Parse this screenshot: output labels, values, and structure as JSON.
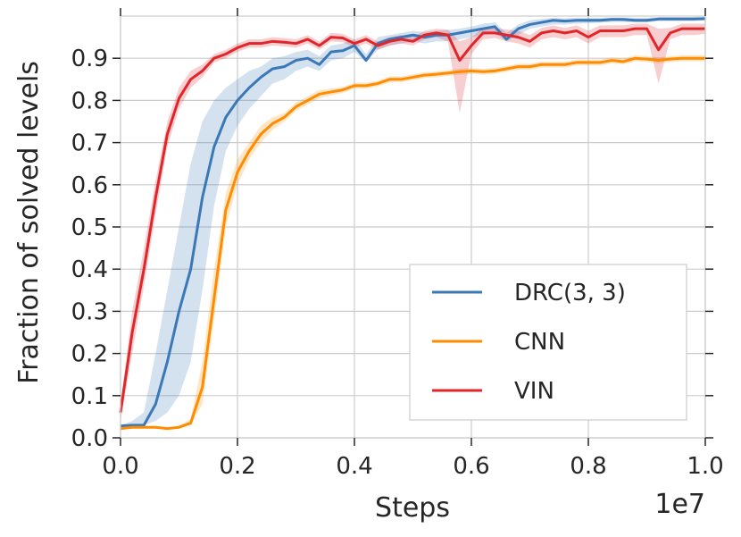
{
  "chart_data": {
    "type": "line",
    "xlabel": "Steps",
    "ylabel": "Fraction of solved levels",
    "x_offset_label": "1e7",
    "xlim": [
      0.0,
      1.0
    ],
    "ylim": [
      0.0,
      1.0
    ],
    "xticks": [
      "0.0",
      "0.2",
      "0.4",
      "0.6",
      "0.8",
      "1.0"
    ],
    "yticks": [
      "0.0",
      "0.1",
      "0.2",
      "0.3",
      "0.4",
      "0.5",
      "0.6",
      "0.7",
      "0.8",
      "0.9"
    ],
    "grid": true,
    "legend": "bottom-right",
    "series": [
      {
        "name": "DRC(3, 3)",
        "color": "#3a78b8",
        "x": [
          0.0,
          0.02,
          0.04,
          0.06,
          0.08,
          0.1,
          0.12,
          0.14,
          0.16,
          0.18,
          0.2,
          0.22,
          0.24,
          0.26,
          0.28,
          0.3,
          0.32,
          0.34,
          0.36,
          0.38,
          0.4,
          0.42,
          0.44,
          0.46,
          0.48,
          0.5,
          0.52,
          0.54,
          0.56,
          0.58,
          0.6,
          0.62,
          0.64,
          0.66,
          0.68,
          0.7,
          0.72,
          0.74,
          0.76,
          0.78,
          0.8,
          0.82,
          0.84,
          0.86,
          0.88,
          0.9,
          0.92,
          0.94,
          0.96,
          0.98,
          1.0
        ],
        "y": [
          0.028,
          0.03,
          0.03,
          0.08,
          0.18,
          0.3,
          0.4,
          0.57,
          0.69,
          0.76,
          0.8,
          0.83,
          0.855,
          0.875,
          0.88,
          0.895,
          0.9,
          0.885,
          0.915,
          0.918,
          0.93,
          0.895,
          0.935,
          0.945,
          0.95,
          0.955,
          0.95,
          0.955,
          0.955,
          0.96,
          0.965,
          0.97,
          0.975,
          0.945,
          0.97,
          0.98,
          0.985,
          0.99,
          0.988,
          0.99,
          0.99,
          0.99,
          0.992,
          0.992,
          0.99,
          0.99,
          0.993,
          0.993,
          0.993,
          0.993,
          0.994
        ],
        "lower": [
          0.028,
          0.03,
          0.03,
          0.04,
          0.06,
          0.1,
          0.18,
          0.35,
          0.55,
          0.68,
          0.74,
          0.78,
          0.81,
          0.84,
          0.85,
          0.87,
          0.88,
          0.87,
          0.895,
          0.9,
          0.915,
          0.89,
          0.92,
          0.93,
          0.935,
          0.94,
          0.935,
          0.94,
          0.94,
          0.945,
          0.95,
          0.955,
          0.96,
          0.94,
          0.955,
          0.97,
          0.975,
          0.98,
          0.98,
          0.982,
          0.983,
          0.984,
          0.986,
          0.986,
          0.985,
          0.985,
          0.988,
          0.988,
          0.988,
          0.988,
          0.99
        ],
        "upper": [
          0.03,
          0.04,
          0.06,
          0.2,
          0.35,
          0.5,
          0.65,
          0.75,
          0.8,
          0.83,
          0.85,
          0.87,
          0.88,
          0.9,
          0.905,
          0.915,
          0.92,
          0.905,
          0.93,
          0.935,
          0.945,
          0.91,
          0.95,
          0.955,
          0.96,
          0.965,
          0.962,
          0.965,
          0.967,
          0.97,
          0.975,
          0.982,
          0.985,
          0.96,
          0.98,
          0.99,
          0.993,
          0.996,
          0.995,
          0.996,
          0.996,
          0.996,
          0.997,
          0.997,
          0.996,
          0.996,
          0.998,
          0.998,
          0.998,
          0.998,
          0.999
        ]
      },
      {
        "name": "CNN",
        "color": "#ff8c00",
        "x": [
          0.0,
          0.02,
          0.04,
          0.06,
          0.08,
          0.1,
          0.12,
          0.14,
          0.16,
          0.18,
          0.2,
          0.22,
          0.24,
          0.26,
          0.28,
          0.3,
          0.32,
          0.34,
          0.36,
          0.38,
          0.4,
          0.42,
          0.44,
          0.46,
          0.48,
          0.5,
          0.52,
          0.54,
          0.56,
          0.58,
          0.6,
          0.62,
          0.64,
          0.66,
          0.68,
          0.7,
          0.72,
          0.74,
          0.76,
          0.78,
          0.8,
          0.82,
          0.84,
          0.86,
          0.88,
          0.9,
          0.92,
          0.94,
          0.96,
          0.98,
          1.0
        ],
        "y": [
          0.022,
          0.025,
          0.025,
          0.025,
          0.022,
          0.025,
          0.035,
          0.12,
          0.33,
          0.54,
          0.63,
          0.68,
          0.72,
          0.745,
          0.76,
          0.785,
          0.8,
          0.815,
          0.82,
          0.825,
          0.835,
          0.835,
          0.84,
          0.85,
          0.85,
          0.855,
          0.86,
          0.862,
          0.865,
          0.868,
          0.87,
          0.868,
          0.87,
          0.875,
          0.88,
          0.88,
          0.885,
          0.885,
          0.885,
          0.89,
          0.89,
          0.89,
          0.895,
          0.892,
          0.9,
          0.898,
          0.895,
          0.898,
          0.9,
          0.9,
          0.9
        ],
        "lower": [
          0.02,
          0.022,
          0.022,
          0.022,
          0.02,
          0.022,
          0.03,
          0.08,
          0.28,
          0.5,
          0.6,
          0.66,
          0.7,
          0.73,
          0.75,
          0.775,
          0.79,
          0.805,
          0.812,
          0.818,
          0.828,
          0.828,
          0.833,
          0.843,
          0.843,
          0.848,
          0.853,
          0.855,
          0.858,
          0.861,
          0.863,
          0.861,
          0.863,
          0.868,
          0.873,
          0.873,
          0.878,
          0.878,
          0.878,
          0.883,
          0.883,
          0.883,
          0.888,
          0.885,
          0.893,
          0.891,
          0.888,
          0.891,
          0.893,
          0.893,
          0.893
        ],
        "upper": [
          0.025,
          0.028,
          0.028,
          0.028,
          0.025,
          0.028,
          0.045,
          0.18,
          0.4,
          0.58,
          0.66,
          0.7,
          0.74,
          0.76,
          0.77,
          0.795,
          0.81,
          0.825,
          0.828,
          0.832,
          0.842,
          0.842,
          0.847,
          0.857,
          0.857,
          0.862,
          0.867,
          0.869,
          0.872,
          0.875,
          0.877,
          0.875,
          0.877,
          0.882,
          0.887,
          0.887,
          0.892,
          0.892,
          0.892,
          0.897,
          0.897,
          0.897,
          0.902,
          0.899,
          0.907,
          0.905,
          0.902,
          0.905,
          0.907,
          0.907,
          0.907
        ]
      },
      {
        "name": "VIN",
        "color": "#e0262a",
        "x": [
          0.0,
          0.02,
          0.04,
          0.06,
          0.08,
          0.1,
          0.12,
          0.14,
          0.16,
          0.18,
          0.2,
          0.22,
          0.24,
          0.26,
          0.28,
          0.3,
          0.32,
          0.34,
          0.36,
          0.38,
          0.4,
          0.42,
          0.44,
          0.46,
          0.48,
          0.5,
          0.52,
          0.54,
          0.56,
          0.58,
          0.6,
          0.62,
          0.64,
          0.66,
          0.68,
          0.7,
          0.72,
          0.74,
          0.76,
          0.78,
          0.8,
          0.82,
          0.84,
          0.86,
          0.88,
          0.9,
          0.92,
          0.94,
          0.96,
          0.98,
          1.0
        ],
        "y": [
          0.06,
          0.25,
          0.4,
          0.57,
          0.72,
          0.805,
          0.85,
          0.87,
          0.9,
          0.91,
          0.925,
          0.935,
          0.935,
          0.94,
          0.938,
          0.935,
          0.945,
          0.93,
          0.95,
          0.948,
          0.935,
          0.945,
          0.93,
          0.94,
          0.945,
          0.94,
          0.955,
          0.96,
          0.955,
          0.895,
          0.93,
          0.96,
          0.96,
          0.955,
          0.95,
          0.94,
          0.96,
          0.965,
          0.96,
          0.965,
          0.95,
          0.965,
          0.965,
          0.965,
          0.97,
          0.97,
          0.92,
          0.96,
          0.97,
          0.97,
          0.97
        ],
        "lower": [
          0.04,
          0.2,
          0.36,
          0.53,
          0.69,
          0.78,
          0.83,
          0.855,
          0.89,
          0.9,
          0.915,
          0.925,
          0.925,
          0.93,
          0.928,
          0.925,
          0.935,
          0.92,
          0.94,
          0.938,
          0.925,
          0.935,
          0.92,
          0.93,
          0.935,
          0.93,
          0.945,
          0.95,
          0.94,
          0.77,
          0.91,
          0.945,
          0.948,
          0.94,
          0.935,
          0.925,
          0.945,
          0.95,
          0.945,
          0.95,
          0.935,
          0.95,
          0.95,
          0.95,
          0.955,
          0.955,
          0.84,
          0.945,
          0.955,
          0.955,
          0.958
        ],
        "upper": [
          0.08,
          0.3,
          0.45,
          0.61,
          0.75,
          0.83,
          0.87,
          0.885,
          0.91,
          0.92,
          0.935,
          0.945,
          0.945,
          0.95,
          0.948,
          0.945,
          0.955,
          0.94,
          0.96,
          0.958,
          0.945,
          0.955,
          0.94,
          0.95,
          0.955,
          0.95,
          0.965,
          0.97,
          0.968,
          0.94,
          0.95,
          0.972,
          0.972,
          0.968,
          0.965,
          0.955,
          0.972,
          0.978,
          0.972,
          0.978,
          0.965,
          0.978,
          0.978,
          0.978,
          0.982,
          0.982,
          0.97,
          0.972,
          0.982,
          0.982,
          0.982
        ]
      }
    ]
  }
}
